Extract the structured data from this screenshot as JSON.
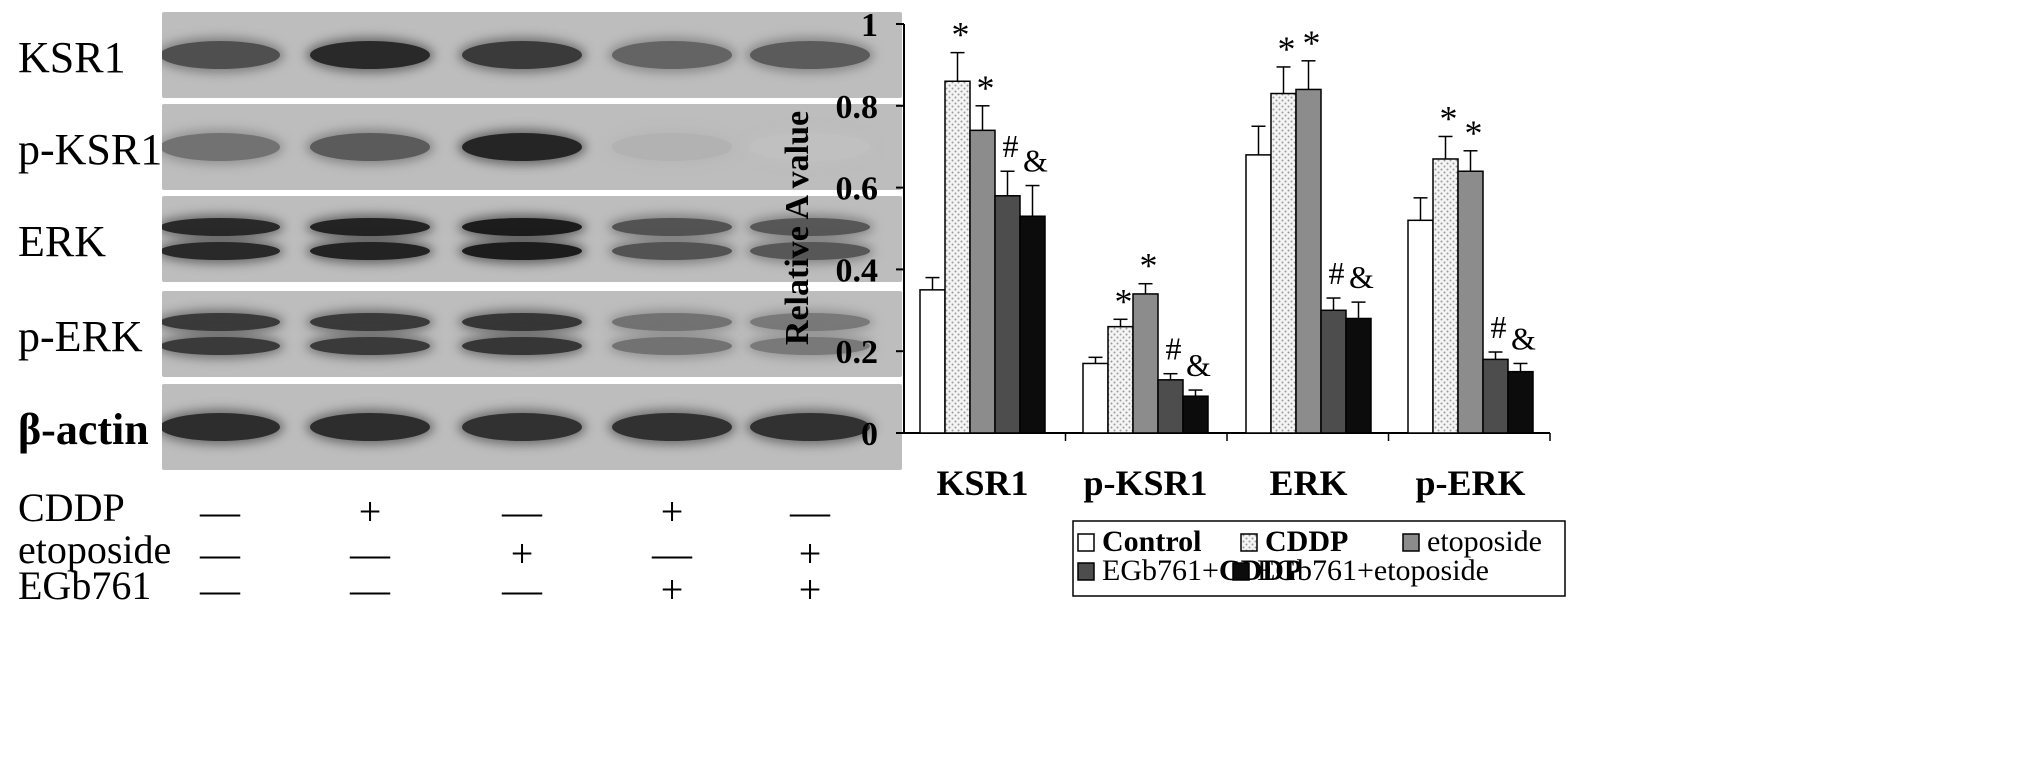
{
  "blot": {
    "proteins": [
      {
        "label": "KSR1",
        "bold": false,
        "intensity": [
          0.72,
          0.9,
          0.82,
          0.62,
          0.66
        ],
        "double": false
      },
      {
        "label": "p-KSR1",
        "bold": false,
        "intensity": [
          0.55,
          0.66,
          0.92,
          0.25,
          0.18
        ],
        "double": false
      },
      {
        "label": "ERK",
        "bold": false,
        "intensity": [
          0.9,
          0.93,
          0.96,
          0.7,
          0.68
        ],
        "double": true
      },
      {
        "label": "p-ERK",
        "bold": false,
        "intensity": [
          0.82,
          0.82,
          0.84,
          0.55,
          0.52
        ],
        "double": true
      },
      {
        "label": "β-actin",
        "bold": true,
        "intensity": [
          0.88,
          0.88,
          0.86,
          0.86,
          0.86
        ],
        "double": false
      }
    ],
    "treatments": [
      {
        "label": "CDDP",
        "marks": [
          "—",
          "+",
          "—",
          "+",
          "—"
        ]
      },
      {
        "label": "etoposide",
        "marks": [
          "—",
          "—",
          "+",
          "—",
          "+"
        ]
      },
      {
        "label": "EGb761",
        "marks": [
          "—",
          "—",
          "—",
          "+",
          "+"
        ]
      }
    ]
  },
  "chart_data": {
    "type": "bar",
    "ylabel": "Relative  A  value",
    "ylim": [
      0,
      1
    ],
    "yticks": [
      "0",
      "0.2",
      "0.4",
      "0.6",
      "0.8",
      "1"
    ],
    "categories": [
      "KSR1",
      "p-KSR1",
      "ERK",
      "p-ERK"
    ],
    "series": [
      {
        "name": "Control",
        "values": [
          0.35,
          0.17,
          0.68,
          0.52
        ],
        "errors": [
          0.03,
          0.015,
          0.07,
          0.055
        ],
        "fill": "#ffffff",
        "pattern": "none",
        "marks": [
          "",
          "",
          "",
          ""
        ]
      },
      {
        "name": "CDDP",
        "values": [
          0.86,
          0.26,
          0.83,
          0.67
        ],
        "errors": [
          0.07,
          0.018,
          0.065,
          0.055
        ],
        "fill": "#eeeeee",
        "pattern": "dots",
        "marks": [
          "*",
          "*",
          "*",
          "*"
        ]
      },
      {
        "name": "etoposide",
        "values": [
          0.74,
          0.34,
          0.84,
          0.64
        ],
        "errors": [
          0.06,
          0.025,
          0.07,
          0.05
        ],
        "fill": "#8c8c8c",
        "pattern": "none",
        "marks": [
          "*",
          "*",
          "*",
          "*"
        ]
      },
      {
        "name": "EGb761+CDDP",
        "values": [
          0.58,
          0.13,
          0.3,
          0.18
        ],
        "errors": [
          0.06,
          0.015,
          0.03,
          0.018
        ],
        "fill": "#4d4d4d",
        "pattern": "none",
        "marks": [
          "#",
          "#",
          "#",
          "#"
        ]
      },
      {
        "name": "EGb761+etoposide",
        "values": [
          0.53,
          0.09,
          0.28,
          0.15
        ],
        "errors": [
          0.075,
          0.015,
          0.04,
          0.02
        ],
        "fill": "#0c0c0c",
        "pattern": "none",
        "marks": [
          "&",
          "&",
          "&",
          "&"
        ]
      }
    ],
    "legend_position": "bottom"
  }
}
